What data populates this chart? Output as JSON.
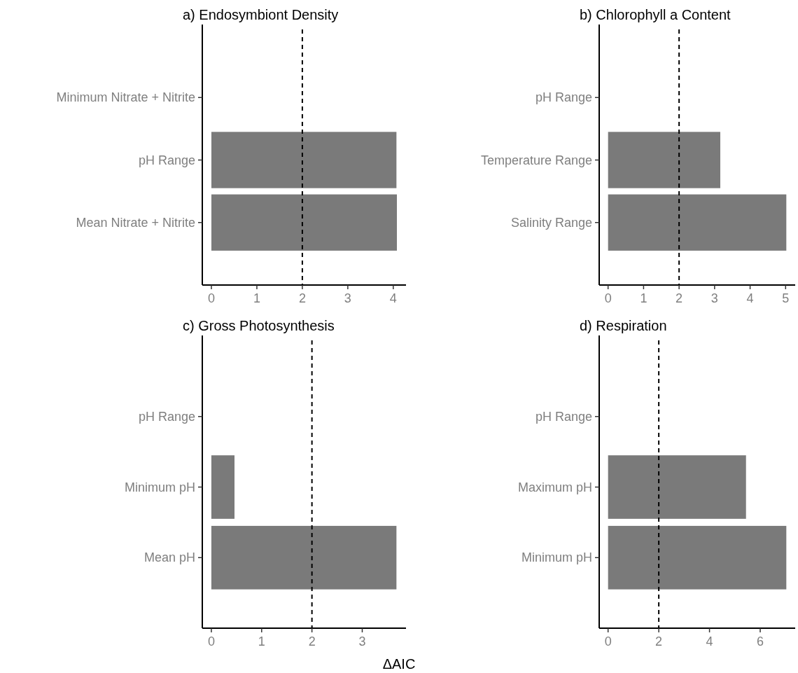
{
  "chart_data": [
    {
      "type": "bar",
      "orientation": "horizontal",
      "title": "a) Endosymbiont Density",
      "categories": [
        "Minimum Nitrate + Nitrite",
        "pH Range",
        "Mean Nitrate + Nitrite"
      ],
      "values": [
        0,
        4.07,
        4.08
      ],
      "color": "#7a7a7a",
      "xlim": [
        -0.2,
        4.28
      ],
      "xticks": [
        0,
        1,
        2,
        3,
        4
      ],
      "grid": false,
      "ref_lines": [
        {
          "axis": "x",
          "value": 2,
          "line_style": "dashed",
          "color": "#000000"
        }
      ]
    },
    {
      "type": "bar",
      "orientation": "horizontal",
      "title": "b) Chlorophyll a Content",
      "categories": [
        "pH Range",
        "Temperature Range",
        "Salinity Range"
      ],
      "values": [
        0,
        3.16,
        5.02
      ],
      "color": "#7a7a7a",
      "xlim": [
        -0.25,
        5.27
      ],
      "xticks": [
        0,
        1,
        2,
        3,
        4,
        5
      ],
      "grid": false,
      "ref_lines": [
        {
          "axis": "x",
          "value": 2,
          "line_style": "dashed",
          "color": "#000000"
        }
      ]
    },
    {
      "type": "bar",
      "orientation": "horizontal",
      "title": "c) Gross Photosynthesis",
      "xlabel": "ΔAIC",
      "categories": [
        "pH Range",
        "Minimum pH",
        "Mean pH"
      ],
      "values": [
        0,
        0.46,
        3.68
      ],
      "color": "#7a7a7a",
      "xlim": [
        -0.18,
        3.87
      ],
      "xticks": [
        0,
        1,
        2,
        3
      ],
      "grid": false,
      "ref_lines": [
        {
          "axis": "x",
          "value": 2,
          "line_style": "dashed",
          "color": "#000000"
        }
      ]
    },
    {
      "type": "bar",
      "orientation": "horizontal",
      "title": "d) Respiration",
      "categories": [
        "pH Range",
        "Maximum pH",
        "Minimum pH"
      ],
      "values": [
        0,
        5.44,
        7.03
      ],
      "color": "#7a7a7a",
      "xlim": [
        -0.35,
        7.38
      ],
      "xticks": [
        0,
        2,
        4,
        6
      ],
      "grid": false,
      "ref_lines": [
        {
          "axis": "x",
          "value": 2,
          "line_style": "dashed",
          "color": "#000000"
        }
      ]
    }
  ]
}
